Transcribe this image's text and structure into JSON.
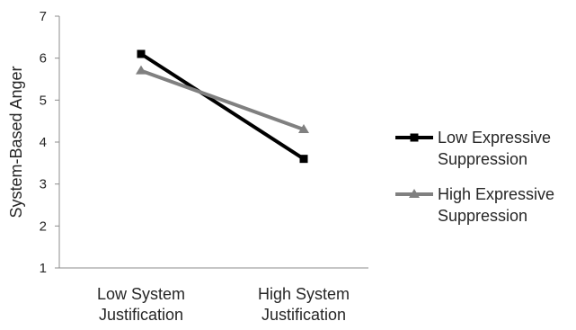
{
  "chart_data": {
    "type": "line",
    "title": "",
    "xlabel": "",
    "ylabel": "System-Based Anger",
    "ylim": [
      1,
      7
    ],
    "yticks": [
      1,
      2,
      3,
      4,
      5,
      6,
      7
    ],
    "grid": false,
    "legend_position": "right",
    "categories": [
      [
        "Low System",
        "Justification"
      ],
      [
        "High System",
        "Justification"
      ]
    ],
    "series": [
      {
        "name": [
          "Low Expressive",
          "Suppression"
        ],
        "values": [
          6.1,
          3.6
        ],
        "color": "#000000",
        "marker": "square"
      },
      {
        "name": [
          "High Expressive",
          "Suppression"
        ],
        "values": [
          5.7,
          4.3
        ],
        "color": "#808080",
        "marker": "triangle"
      }
    ]
  }
}
